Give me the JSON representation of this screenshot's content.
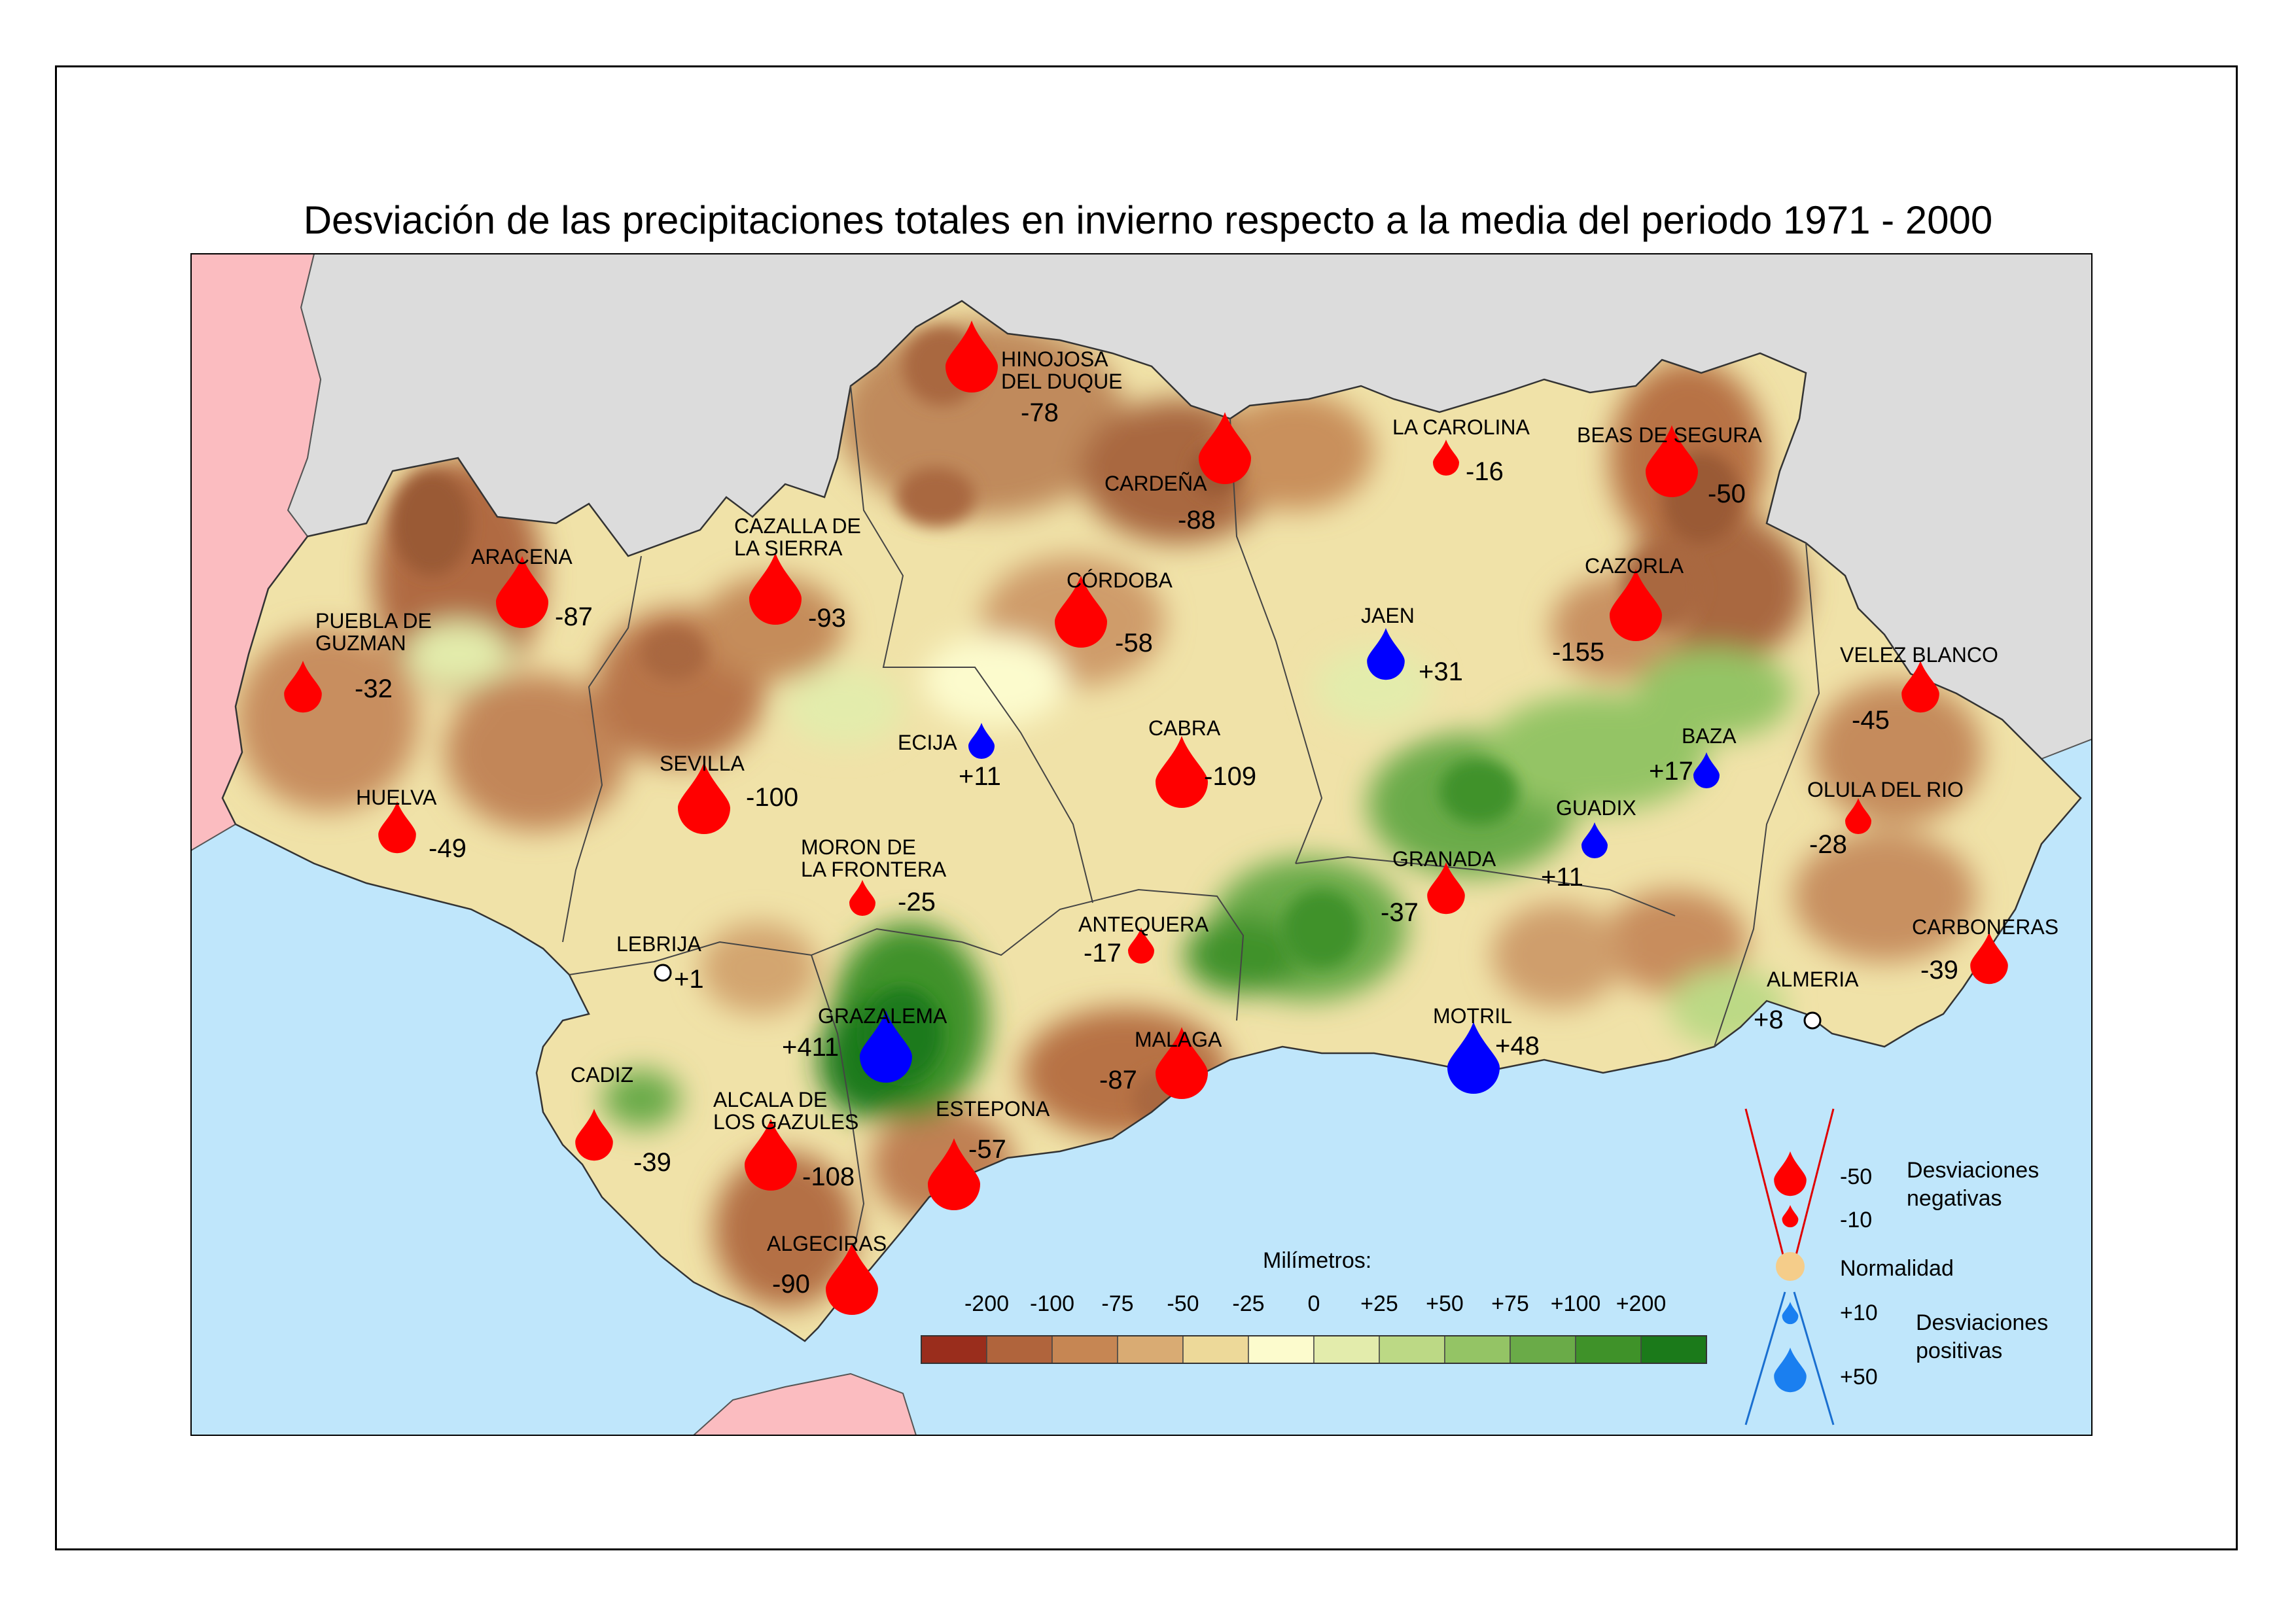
{
  "title": "Desviación de las precipitaciones totales en invierno respecto a la media del periodo 1971 - 2000",
  "colors": {
    "sea": "#bfe6fb",
    "foreign_land": "#dcdcdc",
    "portugal": "#fbbcc0",
    "drop_negative": "#ff0000",
    "drop_positive": "#0000ff",
    "normal_circle": "#ffffff",
    "legend_positive": "#1a7ff0",
    "legend_normal": "#f5cd8a"
  },
  "stations": [
    {
      "name": "HINOJOSA DEL DUQUE",
      "name_lines": [
        "HINOJOSA",
        "DEL DUQUE"
      ],
      "value": "-78",
      "kind": "neg",
      "size": "large"
    },
    {
      "name": "CARDEÑA",
      "name_lines": [
        "CARDEÑA"
      ],
      "value": "-88",
      "kind": "neg",
      "size": "large"
    },
    {
      "name": "LA CAROLINA",
      "name_lines": [
        "LA CAROLINA"
      ],
      "value": "-16",
      "kind": "neg",
      "size": "small"
    },
    {
      "name": "BEAS DE SEGURA",
      "name_lines": [
        "BEAS DE SEGURA"
      ],
      "value": "-50",
      "kind": "neg",
      "size": "large"
    },
    {
      "name": "ARACENA",
      "name_lines": [
        "ARACENA"
      ],
      "value": "-87",
      "kind": "neg",
      "size": "large"
    },
    {
      "name": "CAZALLA DE LA SIERRA",
      "name_lines": [
        "CAZALLA DE",
        "LA SIERRA"
      ],
      "value": "-93",
      "kind": "neg",
      "size": "large"
    },
    {
      "name": "CÓRDOBA",
      "name_lines": [
        "CÓRDOBA"
      ],
      "value": "-58",
      "kind": "neg",
      "size": "large"
    },
    {
      "name": "CAZORLA",
      "name_lines": [
        "CAZORLA"
      ],
      "value": "-155",
      "kind": "neg",
      "size": "large"
    },
    {
      "name": "PUEBLA DE GUZMAN",
      "name_lines": [
        "PUEBLA DE",
        "GUZMAN"
      ],
      "value": "-32",
      "kind": "neg",
      "size": "medium"
    },
    {
      "name": "JAEN",
      "name_lines": [
        "JAEN"
      ],
      "value": "+31",
      "kind": "pos",
      "size": "medium"
    },
    {
      "name": "VELEZ BLANCO",
      "name_lines": [
        "VELEZ BLANCO"
      ],
      "value": "-45",
      "kind": "neg",
      "size": "medium"
    },
    {
      "name": "ECIJA",
      "name_lines": [
        "ECIJA"
      ],
      "value": "+11",
      "kind": "pos",
      "size": "small"
    },
    {
      "name": "CABRA",
      "name_lines": [
        "CABRA"
      ],
      "value": "-109",
      "kind": "neg",
      "size": "large"
    },
    {
      "name": "BAZA",
      "name_lines": [
        "BAZA"
      ],
      "value": "+17",
      "kind": "pos",
      "size": "small"
    },
    {
      "name": "SEVILLA",
      "name_lines": [
        "SEVILLA"
      ],
      "value": "-100",
      "kind": "neg",
      "size": "large"
    },
    {
      "name": "HUELVA",
      "name_lines": [
        "HUELVA"
      ],
      "value": "-49",
      "kind": "neg",
      "size": "medium"
    },
    {
      "name": "GUADIX",
      "name_lines": [
        "GUADIX"
      ],
      "value": "+11",
      "kind": "pos",
      "size": "small"
    },
    {
      "name": "OLULA DEL RIO",
      "name_lines": [
        "OLULA DEL RIO"
      ],
      "value": "-28",
      "kind": "neg",
      "size": "small"
    },
    {
      "name": "MORON DE LA FRONTERA",
      "name_lines": [
        "MORON DE",
        "LA FRONTERA"
      ],
      "value": "-25",
      "kind": "neg",
      "size": "small"
    },
    {
      "name": "GRANADA",
      "name_lines": [
        "GRANADA"
      ],
      "value": "-37",
      "kind": "neg",
      "size": "medium"
    },
    {
      "name": "ANTEQUERA",
      "name_lines": [
        "ANTEQUERA"
      ],
      "value": "-17",
      "kind": "neg",
      "size": "small"
    },
    {
      "name": "CARBONERAS",
      "name_lines": [
        "CARBONERAS"
      ],
      "value": "-39",
      "kind": "neg",
      "size": "medium"
    },
    {
      "name": "LEBRIJA",
      "name_lines": [
        "LEBRIJA"
      ],
      "value": "+1",
      "kind": "normal",
      "size": "small"
    },
    {
      "name": "ALMERIA",
      "name_lines": [
        "ALMERIA"
      ],
      "value": "+8",
      "kind": "normal",
      "size": "small"
    },
    {
      "name": "GRAZALEMA",
      "name_lines": [
        "GRAZALEMA"
      ],
      "value": "+411",
      "kind": "pos",
      "size": "large"
    },
    {
      "name": "MOTRIL",
      "name_lines": [
        "MOTRIL"
      ],
      "value": "+48",
      "kind": "pos",
      "size": "large"
    },
    {
      "name": "MALAGA",
      "name_lines": [
        "MALAGA"
      ],
      "value": "-87",
      "kind": "neg",
      "size": "large"
    },
    {
      "name": "CADIZ",
      "name_lines": [
        "CADIZ"
      ],
      "value": "-39",
      "kind": "neg",
      "size": "medium"
    },
    {
      "name": "ALCALA DE LOS GAZULES",
      "name_lines": [
        "ALCALA DE",
        "LOS GAZULES"
      ],
      "value": "-108",
      "kind": "neg",
      "size": "large"
    },
    {
      "name": "ESTEPONA",
      "name_lines": [
        "ESTEPONA"
      ],
      "value": "-57",
      "kind": "neg",
      "size": "large"
    },
    {
      "name": "ALGECIRAS",
      "name_lines": [
        "ALGECIRAS"
      ],
      "value": "-90",
      "kind": "neg",
      "size": "large"
    }
  ],
  "colorbar": {
    "title": "Milímetros:",
    "labels": [
      "-200",
      "-100",
      "-75",
      "-50",
      "-25",
      "0",
      "+25",
      "+50",
      "+75",
      "+100",
      "+200"
    ],
    "colors": [
      "#9a2d1c",
      "#b0643c",
      "#c68653",
      "#d9ab73",
      "#edd999",
      "#fcfbcd",
      "#e3ecac",
      "#bcd985",
      "#94c465",
      "#6aab48",
      "#3f9229",
      "#1b7a1a"
    ]
  },
  "drop_legend": {
    "items": [
      {
        "value": "-50",
        "kind": "neg",
        "size": "large"
      },
      {
        "value": "-10",
        "kind": "neg",
        "size": "small"
      },
      {
        "value": "Normalidad",
        "kind": "normal",
        "size": "medium"
      },
      {
        "value": "+10",
        "kind": "pos",
        "size": "small"
      },
      {
        "value": "+50",
        "kind": "pos",
        "size": "large"
      }
    ],
    "negative_label": [
      "Desviaciones",
      "negativas"
    ],
    "positive_label": [
      "Desviaciones",
      "positivas"
    ]
  }
}
